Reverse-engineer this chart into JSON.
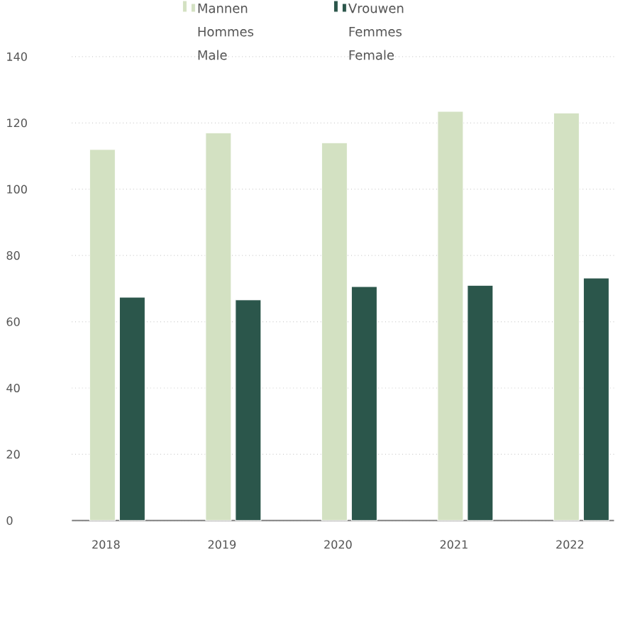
{
  "chart_data": {
    "type": "bar",
    "categories": [
      "2018",
      "2019",
      "2020",
      "2021",
      "2022"
    ],
    "series": [
      {
        "name": "Mannen Hommes Male",
        "color": "#d3e1c2",
        "values": [
          112,
          117,
          114,
          123.5,
          123
        ]
      },
      {
        "name": "Vrouwen Femmes Female",
        "color": "#2b564b",
        "values": [
          67.4,
          66.6,
          70.6,
          71,
          73.2
        ]
      }
    ],
    "ylim": [
      0,
      140
    ],
    "yticks": [
      0,
      20,
      40,
      60,
      80,
      100,
      120,
      140
    ],
    "grid": "y",
    "legend": "top"
  }
}
